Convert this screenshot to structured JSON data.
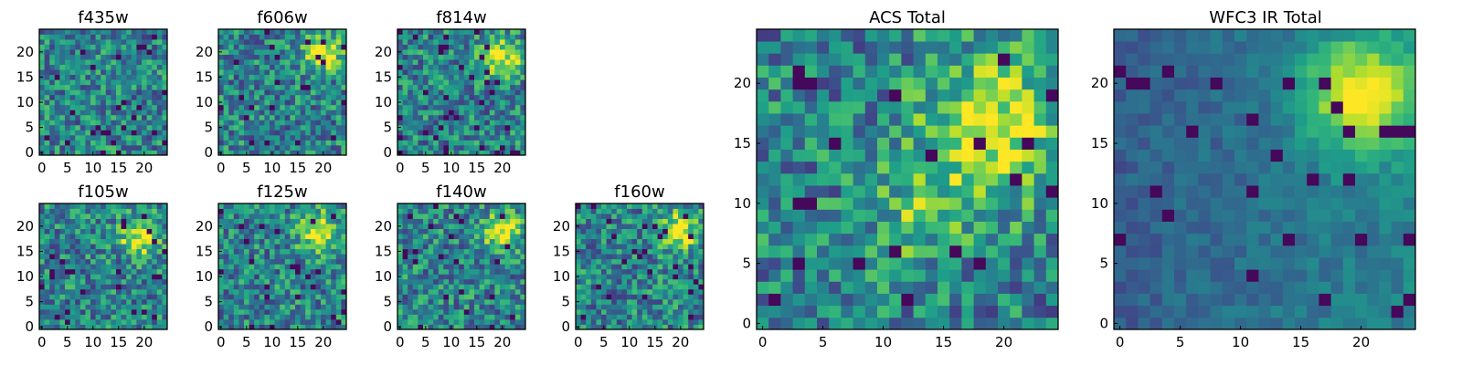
{
  "figure": {
    "panels": [
      {
        "title": "f435w",
        "peak": null,
        "ticks_x": [
          "0",
          "5",
          "10",
          "15",
          "20"
        ],
        "ticks_y": [
          "0",
          "5",
          "10",
          "15",
          "20"
        ]
      },
      {
        "title": "f606w",
        "peak": [
          20,
          20
        ],
        "ticks_x": [
          "0",
          "5",
          "10",
          "15",
          "20"
        ],
        "ticks_y": [
          "0",
          "5",
          "10",
          "15",
          "20"
        ]
      },
      {
        "title": "f814w",
        "peak": [
          20,
          19
        ],
        "ticks_x": [
          "0",
          "5",
          "10",
          "15",
          "20"
        ],
        "ticks_y": [
          "0",
          "5",
          "10",
          "15",
          "20"
        ]
      },
      {
        "title": "f105w",
        "peak": [
          19,
          18
        ],
        "ticks_x": [
          "0",
          "5",
          "10",
          "15",
          "20"
        ],
        "ticks_y": [
          "0",
          "5",
          "10",
          "15",
          "20"
        ]
      },
      {
        "title": "f125w",
        "peak": [
          19,
          19
        ],
        "ticks_x": [
          "0",
          "5",
          "10",
          "15",
          "20"
        ],
        "ticks_y": [
          "0",
          "5",
          "10",
          "15",
          "20"
        ]
      },
      {
        "title": "f140w",
        "peak": [
          20,
          19
        ],
        "ticks_x": [
          "0",
          "5",
          "10",
          "15",
          "20"
        ],
        "ticks_y": [
          "0",
          "5",
          "10",
          "15",
          "20"
        ]
      },
      {
        "title": "f160w",
        "peak": [
          20,
          19
        ],
        "ticks_x": [
          "0",
          "5",
          "10",
          "15",
          "20"
        ],
        "ticks_y": [
          "0",
          "5",
          "10",
          "15",
          "20"
        ]
      },
      {
        "title": "ACS Total",
        "peak": [
          19,
          16
        ],
        "ticks_x": [
          "0",
          "5",
          "10",
          "15",
          "20"
        ],
        "ticks_y": [
          "0",
          "5",
          "10",
          "15",
          "20"
        ]
      },
      {
        "title": "WFC3 IR Total",
        "peak": [
          20,
          19
        ],
        "ticks_x": [
          "0",
          "5",
          "10",
          "15",
          "20"
        ],
        "ticks_y": [
          "0",
          "5",
          "10",
          "15",
          "20"
        ]
      }
    ]
  },
  "chart_data": [
    {
      "type": "heatmap",
      "title": "f435w",
      "grid_size": [
        25,
        25
      ],
      "xlim": [
        0,
        24
      ],
      "ylim": [
        0,
        24
      ],
      "colormap": "viridis"
    },
    {
      "type": "heatmap",
      "title": "f606w",
      "grid_size": [
        25,
        25
      ],
      "xlim": [
        0,
        24
      ],
      "ylim": [
        0,
        24
      ],
      "colormap": "viridis"
    },
    {
      "type": "heatmap",
      "title": "f814w",
      "grid_size": [
        25,
        25
      ],
      "xlim": [
        0,
        24
      ],
      "ylim": [
        0,
        24
      ],
      "colormap": "viridis"
    },
    {
      "type": "heatmap",
      "title": "f105w",
      "grid_size": [
        25,
        25
      ],
      "xlim": [
        0,
        24
      ],
      "ylim": [
        0,
        24
      ],
      "colormap": "viridis"
    },
    {
      "type": "heatmap",
      "title": "f125w",
      "grid_size": [
        25,
        25
      ],
      "xlim": [
        0,
        24
      ],
      "ylim": [
        0,
        24
      ],
      "colormap": "viridis"
    },
    {
      "type": "heatmap",
      "title": "f140w",
      "grid_size": [
        25,
        25
      ],
      "xlim": [
        0,
        24
      ],
      "ylim": [
        0,
        24
      ],
      "colormap": "viridis"
    },
    {
      "type": "heatmap",
      "title": "f160w",
      "grid_size": [
        25,
        25
      ],
      "xlim": [
        0,
        24
      ],
      "ylim": [
        0,
        24
      ],
      "colormap": "viridis"
    },
    {
      "type": "heatmap",
      "title": "ACS Total",
      "grid_size": [
        25,
        25
      ],
      "xlim": [
        0,
        24
      ],
      "ylim": [
        0,
        24
      ],
      "colormap": "viridis"
    },
    {
      "type": "heatmap",
      "title": "WFC3 IR Total",
      "grid_size": [
        25,
        25
      ],
      "xlim": [
        0,
        24
      ],
      "ylim": [
        0,
        24
      ],
      "colormap": "viridis"
    }
  ]
}
